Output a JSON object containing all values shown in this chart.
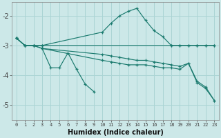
{
  "xlabel": "Humidex (Indice chaleur)",
  "bg_color": "#cce8e8",
  "grid_color": "#aad4d4",
  "line_color": "#1a7a6e",
  "xlim": [
    -0.5,
    23.5
  ],
  "ylim": [
    -5.5,
    -1.55
  ],
  "yticks": [
    -5,
    -4,
    -3,
    -2
  ],
  "xticks": [
    0,
    1,
    2,
    3,
    4,
    5,
    6,
    7,
    8,
    9,
    10,
    11,
    12,
    13,
    14,
    15,
    16,
    17,
    18,
    19,
    20,
    21,
    22,
    23
  ],
  "series": [
    {
      "x": [
        0,
        1,
        2,
        3,
        10,
        11,
        12,
        13,
        14,
        15,
        16,
        17,
        18,
        19,
        20,
        21,
        22,
        23
      ],
      "y": [
        -2.75,
        -3.0,
        -3.0,
        -3.0,
        -2.55,
        -2.25,
        -2.0,
        -1.85,
        -1.75,
        -2.15,
        -2.5,
        -2.7,
        -3.0,
        -3.0,
        -3.0,
        -3.0,
        -3.0,
        -3.0
      ]
    },
    {
      "x": [
        0,
        1,
        2,
        3,
        18,
        19,
        20,
        21,
        22,
        23
      ],
      "y": [
        -2.75,
        -3.0,
        -3.0,
        -3.0,
        -3.0,
        -3.0,
        -3.0,
        -3.0,
        -3.0,
        -3.0
      ]
    },
    {
      "x": [
        0,
        1,
        2,
        3,
        10,
        11,
        12,
        13,
        14,
        15,
        16,
        17,
        18,
        19,
        20,
        21,
        22,
        23
      ],
      "y": [
        -2.75,
        -3.0,
        -3.0,
        -3.1,
        -3.3,
        -3.35,
        -3.4,
        -3.45,
        -3.5,
        -3.5,
        -3.55,
        -3.6,
        -3.65,
        -3.7,
        -3.6,
        -4.2,
        -4.4,
        -4.85
      ]
    },
    {
      "x": [
        0,
        1,
        2,
        3,
        10,
        11,
        12,
        13,
        14,
        15,
        16,
        17,
        18,
        19,
        20,
        21,
        22,
        23
      ],
      "y": [
        -2.75,
        -3.0,
        -3.0,
        -3.1,
        -3.5,
        -3.55,
        -3.6,
        -3.65,
        -3.65,
        -3.65,
        -3.7,
        -3.75,
        -3.75,
        -3.8,
        -3.6,
        -4.25,
        -4.45,
        -4.85
      ]
    },
    {
      "x": [
        3,
        4,
        5,
        6,
        7,
        8,
        9
      ],
      "y": [
        -3.1,
        -3.75,
        -3.75,
        -3.25,
        -3.8,
        -4.3,
        -4.55
      ]
    }
  ]
}
